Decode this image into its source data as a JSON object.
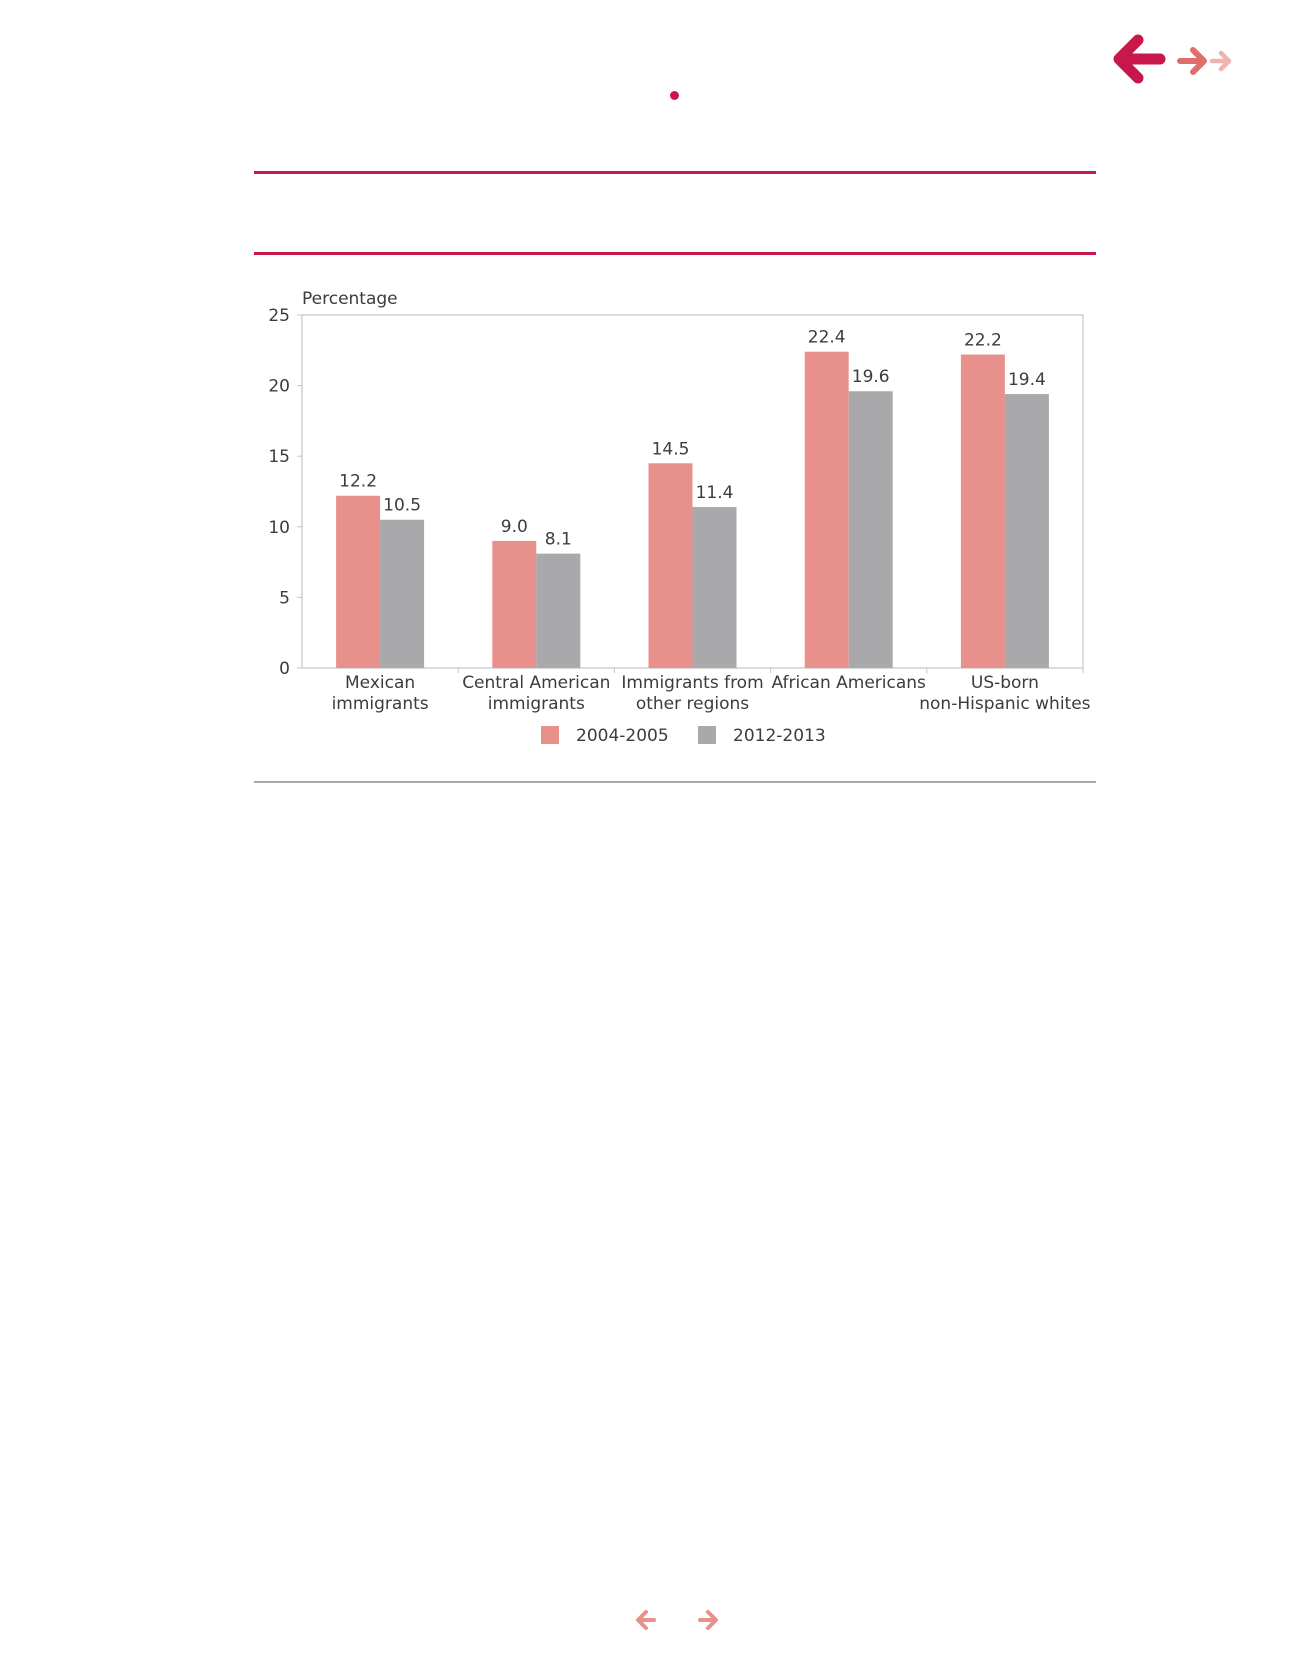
{
  "header": {
    "back_icon": "arrow-left-icon",
    "forward_icons": [
      "arrow-right-icon",
      "arrow-right-icon"
    ]
  },
  "colors": {
    "accent": "#c8174a",
    "series_1": "#e8918c",
    "series_2": "#a9a9ab",
    "nav_light": "#e8918c",
    "nav_lighter": "#f0b3ae"
  },
  "chart_data": {
    "type": "bar",
    "ylabel": "Percentage",
    "ylim": [
      0,
      25
    ],
    "yticks": [
      0,
      5,
      10,
      15,
      20,
      25
    ],
    "categories": [
      [
        "Mexican",
        "immigrants"
      ],
      [
        "Central American",
        "immigrants"
      ],
      [
        "Immigrants from",
        "other regions"
      ],
      [
        "African Americans"
      ],
      [
        "US-born",
        "non-Hispanic whites"
      ]
    ],
    "series": [
      {
        "name": "2004-2005",
        "values": [
          12.2,
          9.0,
          14.5,
          22.4,
          22.2
        ],
        "labels": [
          "12.2",
          "9.0",
          "14.5",
          "22.4",
          "22.2"
        ]
      },
      {
        "name": "2012-2013",
        "values": [
          10.5,
          8.1,
          11.4,
          19.6,
          19.4
        ],
        "labels": [
          "10.5",
          "8.1",
          "11.4",
          "19.6",
          "19.4"
        ]
      }
    ],
    "legend_position": "bottom-center",
    "grid": false
  },
  "footer": {
    "prev_icon": "arrow-left-icon",
    "next_icon": "arrow-right-icon"
  }
}
